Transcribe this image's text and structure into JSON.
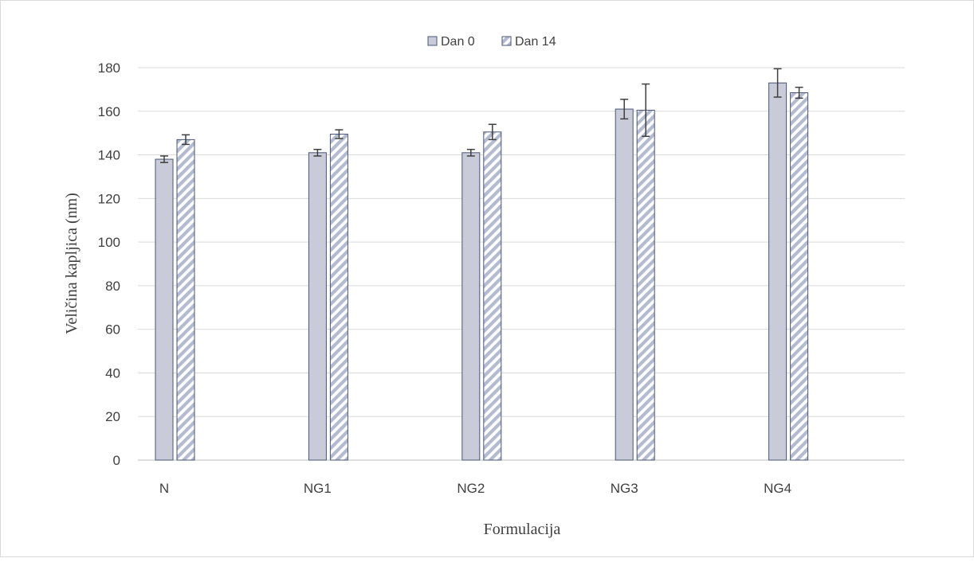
{
  "chart_data": {
    "type": "bar",
    "title": "",
    "xlabel": "Formulacija",
    "ylabel": "Veličina kapljica (nm)",
    "categories": [
      "N",
      "NG1",
      "NG2",
      "NG3",
      "NG4"
    ],
    "ylim": [
      0,
      180
    ],
    "yticks": [
      0,
      20,
      40,
      60,
      80,
      100,
      120,
      140,
      160,
      180
    ],
    "grid": true,
    "legend_position": "top-center",
    "series": [
      {
        "name": "Dan 0",
        "pattern": "solid",
        "color": "#c9cbd9",
        "values": [
          138,
          141,
          141,
          161,
          173
        ],
        "errors": [
          1.5,
          1.5,
          1.5,
          4.5,
          6.5
        ]
      },
      {
        "name": "Dan 14",
        "pattern": "diagonal-stripes",
        "color": "#b3bbd0",
        "values": [
          147,
          149.5,
          150.5,
          160.5,
          168.5
        ],
        "errors": [
          2.2,
          2,
          3.5,
          12,
          2.5
        ]
      }
    ],
    "colors": {
      "bar_border": "#4a5575",
      "grid": "#d9d9d9",
      "axis": "#bfbfbf",
      "error_bar": "#3f3f3f"
    }
  }
}
